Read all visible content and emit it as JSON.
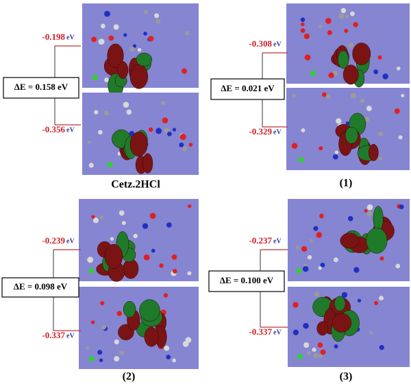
{
  "unit": "eV",
  "panels": [
    {
      "label": "Cetz.2HCl",
      "homo": "-0.198",
      "lumo": "-0.356",
      "gap": "ΔE = 0.158 eV"
    },
    {
      "label": "(1)",
      "homo": "-0.308",
      "lumo": "-0.329",
      "gap": "ΔE = 0.021 eV"
    },
    {
      "label": "(2)",
      "homo": "-0.239",
      "lumo": "-0.337",
      "gap": "ΔE = 0.098 eV"
    },
    {
      "label": "(3)",
      "homo": "-0.237",
      "lumo": "-0.337",
      "gap": "ΔE = 0.100 eV"
    }
  ]
}
